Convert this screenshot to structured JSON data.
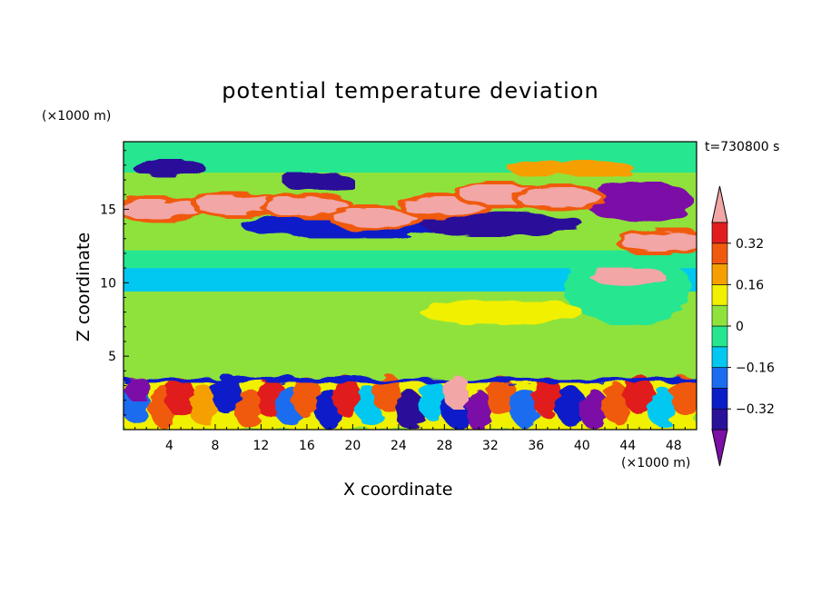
{
  "chart_data": {
    "type": "heatmap",
    "title": "potential temperature deviation",
    "xlabel": "X coordinate",
    "ylabel": "Z coordinate",
    "x_unit": "(×1000 m)",
    "z_unit": "(×1000 m)",
    "time_label": "t=730800 s",
    "xlim": [
      0,
      50
    ],
    "ylim": [
      0,
      19.6
    ],
    "x_ticks": [
      4,
      8,
      12,
      16,
      20,
      24,
      28,
      32,
      36,
      40,
      44,
      48
    ],
    "y_ticks": [
      5,
      10,
      15
    ],
    "colorbar": {
      "labels": [
        "0.32",
        "0.16",
        "0",
        "-0.16",
        "-0.32"
      ],
      "levels": [
        -0.4,
        -0.32,
        -0.24,
        -0.16,
        -0.08,
        0,
        0.08,
        0.16,
        0.24,
        0.32,
        0.4
      ],
      "colors": [
        "#7b0fa6",
        "#2a1199",
        "#0a1ec8",
        "#1c6cf0",
        "#00c8f0",
        "#26e690",
        "#8fe23c",
        "#f0f000",
        "#f5a000",
        "#f05a10",
        "#e11e1e",
        "#f2a6a6"
      ],
      "extend": "both"
    }
  }
}
